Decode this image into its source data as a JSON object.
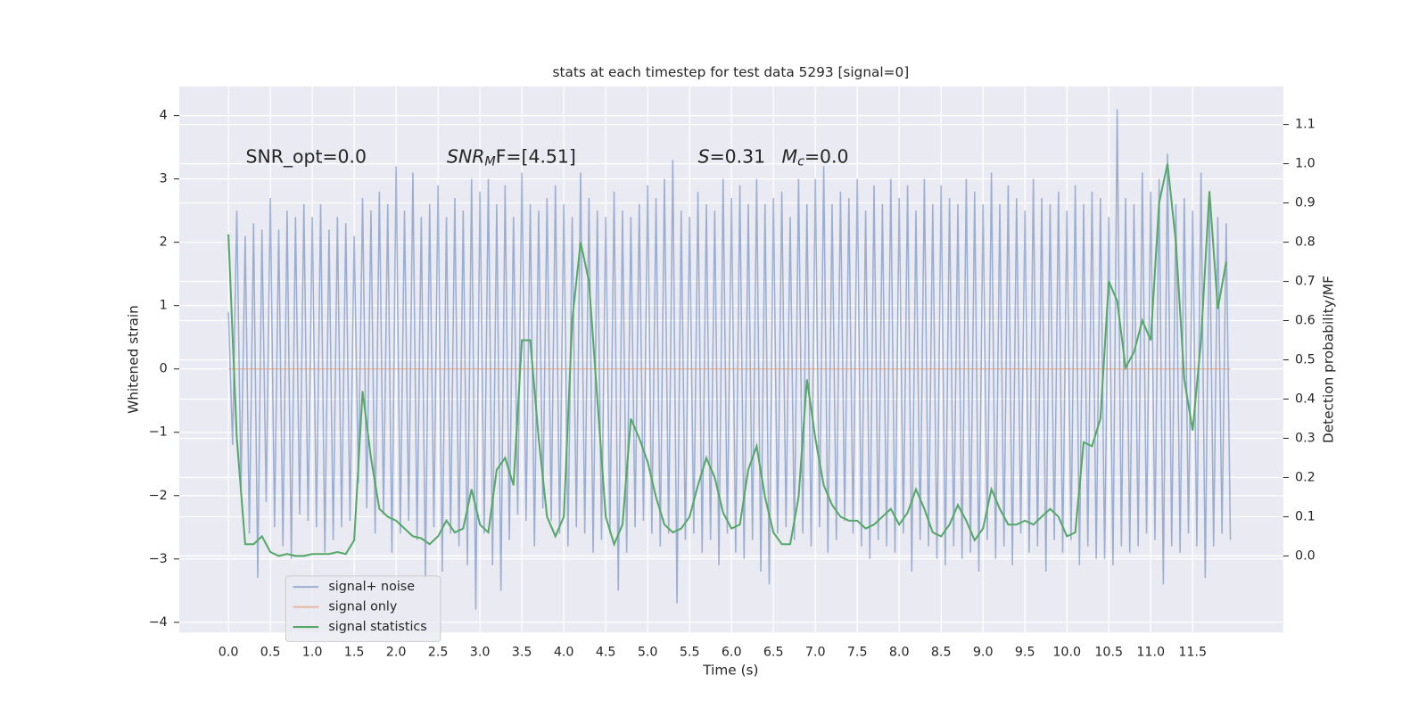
{
  "chart_data": {
    "type": "line",
    "title": "stats at each timestep for test data 5293 [signal=0]",
    "x_label": "Time (s)",
    "y_label": "Whitened strain",
    "y2_label": "Detection probability/MF",
    "background": "#eaeaf2",
    "grid": true,
    "legend": "lower left",
    "xlim": [
      -0.586,
      12.58
    ],
    "ylim": [
      -4.16,
      4.46
    ],
    "y2lim": [
      -0.195,
      1.197
    ],
    "xticks": [
      {
        "value": 0,
        "label": "0.0"
      },
      {
        "value": 0.5,
        "label": "0.5"
      },
      {
        "value": 1,
        "label": "1.0"
      },
      {
        "value": 1.5,
        "label": "1.5"
      },
      {
        "value": 2,
        "label": "2.0"
      },
      {
        "value": 2.5,
        "label": "2.5"
      },
      {
        "value": 3,
        "label": "3.0"
      },
      {
        "value": 3.5,
        "label": "3.5"
      },
      {
        "value": 4,
        "label": "4.0"
      },
      {
        "value": 4.5,
        "label": "4.5"
      },
      {
        "value": 5,
        "label": "5.0"
      },
      {
        "value": 5.5,
        "label": "5.5"
      },
      {
        "value": 6,
        "label": "6.0"
      },
      {
        "value": 6.5,
        "label": "6.5"
      },
      {
        "value": 7,
        "label": "7.0"
      },
      {
        "value": 7.5,
        "label": "7.5"
      },
      {
        "value": 8,
        "label": "8.0"
      },
      {
        "value": 8.5,
        "label": "8.5"
      },
      {
        "value": 9,
        "label": "9.0"
      },
      {
        "value": 9.5,
        "label": "9.5"
      },
      {
        "value": 10,
        "label": "10.0"
      },
      {
        "value": 10.5,
        "label": "10.5"
      },
      {
        "value": 11,
        "label": "11.0"
      },
      {
        "value": 11.5,
        "label": "11.5"
      }
    ],
    "yticks": [
      {
        "value": -4,
        "label": "−4"
      },
      {
        "value": -3,
        "label": "−3"
      },
      {
        "value": -2,
        "label": "−2"
      },
      {
        "value": -1,
        "label": "−1"
      },
      0,
      1,
      2,
      3,
      4
    ],
    "y2ticks": [
      {
        "value": 0,
        "label": "0.0"
      },
      {
        "value": 0.1,
        "label": "0.1"
      },
      {
        "value": 0.2,
        "label": "0.2"
      },
      {
        "value": 0.3,
        "label": "0.3"
      },
      {
        "value": 0.4,
        "label": "0.4"
      },
      {
        "value": 0.5,
        "label": "0.5"
      },
      {
        "value": 0.6,
        "label": "0.6"
      },
      {
        "value": 0.7,
        "label": "0.7"
      },
      {
        "value": 0.8,
        "label": "0.8"
      },
      {
        "value": 0.9,
        "label": "0.9"
      },
      {
        "value": 1,
        "label": "1.0"
      },
      {
        "value": 1.1,
        "label": "1.1"
      }
    ],
    "annotations": [
      [
        {
          "text": "SNR_opt=0.0"
        }
      ],
      [
        {
          "text": "SNR",
          "style": "italic"
        },
        {
          "text": "M",
          "style": "italic-sub"
        },
        {
          "text": "F=[4.51]"
        }
      ],
      [
        {
          "text": "S",
          "style": "italic"
        },
        {
          "text": "=0.31"
        }
      ],
      [
        {
          "text": "M",
          "style": "italic"
        },
        {
          "text": "c",
          "style": "italic-sub"
        },
        {
          "text": "=0.0"
        }
      ]
    ],
    "series": [
      {
        "name": "signal+ noise",
        "color": "#4c72b0",
        "opacity": 0.5,
        "axis": "y",
        "x": [
          0,
          0.05,
          0.1,
          0.15,
          0.2,
          0.25,
          0.3,
          0.35,
          0.4,
          0.45,
          0.5,
          0.55,
          0.6,
          0.65,
          0.7,
          0.75,
          0.8,
          0.85,
          0.9,
          0.95,
          1,
          1.05,
          1.1,
          1.15,
          1.2,
          1.25,
          1.3,
          1.35,
          1.4,
          1.45,
          1.5,
          1.55,
          1.6,
          1.65,
          1.7,
          1.75,
          1.8,
          1.85,
          1.9,
          1.95,
          2,
          2.05,
          2.1,
          2.15,
          2.2,
          2.25,
          2.3,
          2.35,
          2.4,
          2.45,
          2.5,
          2.55,
          2.6,
          2.65,
          2.7,
          2.75,
          2.8,
          2.85,
          2.9,
          2.95,
          3,
          3.05,
          3.1,
          3.15,
          3.2,
          3.25,
          3.3,
          3.35,
          3.4,
          3.45,
          3.5,
          3.55,
          3.6,
          3.65,
          3.7,
          3.75,
          3.8,
          3.85,
          3.9,
          3.95,
          4,
          4.05,
          4.1,
          4.15,
          4.2,
          4.25,
          4.3,
          4.35,
          4.4,
          4.45,
          4.5,
          4.55,
          4.6,
          4.65,
          4.7,
          4.75,
          4.8,
          4.85,
          4.9,
          4.95,
          5,
          5.05,
          5.1,
          5.15,
          5.2,
          5.25,
          5.3,
          5.35,
          5.4,
          5.45,
          5.5,
          5.55,
          5.6,
          5.65,
          5.7,
          5.75,
          5.8,
          5.85,
          5.9,
          5.95,
          6,
          6.05,
          6.1,
          6.15,
          6.2,
          6.25,
          6.3,
          6.35,
          6.4,
          6.45,
          6.5,
          6.55,
          6.6,
          6.65,
          6.7,
          6.75,
          6.8,
          6.85,
          6.9,
          6.95,
          7,
          7.05,
          7.1,
          7.15,
          7.2,
          7.25,
          7.3,
          7.35,
          7.4,
          7.45,
          7.5,
          7.55,
          7.6,
          7.65,
          7.7,
          7.75,
          7.8,
          7.85,
          7.9,
          7.95,
          8,
          8.05,
          8.1,
          8.15,
          8.2,
          8.25,
          8.3,
          8.35,
          8.4,
          8.45,
          8.5,
          8.55,
          8.6,
          8.65,
          8.7,
          8.75,
          8.8,
          8.85,
          8.9,
          8.95,
          9,
          9.05,
          9.1,
          9.15,
          9.2,
          9.25,
          9.3,
          9.35,
          9.4,
          9.45,
          9.5,
          9.55,
          9.6,
          9.65,
          9.7,
          9.75,
          9.8,
          9.85,
          9.9,
          9.95,
          10,
          10.05,
          10.1,
          10.15,
          10.2,
          10.25,
          10.3,
          10.35,
          10.4,
          10.45,
          10.5,
          10.55,
          10.6,
          10.65,
          10.7,
          10.75,
          10.8,
          10.85,
          10.9,
          10.95,
          11,
          11.05,
          11.1,
          11.15,
          11.2,
          11.25,
          11.3,
          11.35,
          11.4,
          11.45,
          11.5,
          11.55,
          11.6,
          11.65,
          11.7,
          11.75,
          11.8,
          11.85,
          11.9,
          11.95
        ],
        "values": [
          0.9,
          -1.2,
          2.5,
          -1.9,
          2.1,
          -2.6,
          2.3,
          -3.3,
          2.2,
          -2.1,
          2.7,
          -2.5,
          2.2,
          -2.8,
          2.5,
          -3.0,
          2.4,
          -2.3,
          2.6,
          -2.4,
          2.4,
          -2.5,
          2.6,
          -2.9,
          2.2,
          -2.7,
          2.4,
          -2.5,
          2.3,
          -2.4,
          2.1,
          -1.8,
          2.7,
          -2.2,
          2.5,
          -2.6,
          2.8,
          -2.3,
          2.6,
          -2.9,
          3.2,
          -2.6,
          2.5,
          -2.4,
          3.1,
          -2.7,
          2.4,
          -3.3,
          2.6,
          -2.5,
          2.9,
          -3.2,
          2.4,
          -2.6,
          2.7,
          -2.8,
          2.5,
          -3.1,
          3.0,
          -3.8,
          2.8,
          -2.6,
          3.0,
          -3.1,
          2.6,
          -3.5,
          2.9,
          -2.7,
          2.4,
          -2.3,
          3.1,
          -2.4,
          2.6,
          -2.8,
          2.5,
          -2.2,
          2.7,
          -2.4,
          2.9,
          -2.6,
          2.6,
          -2.8,
          2.4,
          -2.5,
          3.1,
          -2.6,
          2.7,
          -2.9,
          2.5,
          -2.7,
          2.4,
          -2.6,
          2.8,
          -3.5,
          2.5,
          -2.9,
          2.4,
          -2.5,
          2.6,
          -2.4,
          2.9,
          -2.6,
          2.7,
          -2.8,
          3.0,
          -2.6,
          3.3,
          -3.7,
          2.5,
          -2.7,
          2.4,
          -2.6,
          2.8,
          -2.9,
          2.6,
          -2.7,
          2.5,
          -3.1,
          3.0,
          -2.6,
          2.7,
          -2.9,
          2.9,
          -3.0,
          2.6,
          -2.7,
          3.0,
          -3.2,
          2.6,
          -3.4,
          2.7,
          -2.6,
          2.8,
          -2.5,
          2.4,
          -2.7,
          3.0,
          -2.6,
          2.6,
          -2.8,
          3.0,
          -2.5,
          3.2,
          -2.9,
          2.6,
          -2.7,
          2.8,
          -2.4,
          2.7,
          -2.6,
          3.0,
          -2.8,
          2.5,
          -3.0,
          2.9,
          -2.7,
          2.6,
          -2.8,
          3.0,
          -2.9,
          2.7,
          -2.6,
          2.9,
          -3.2,
          2.5,
          -2.7,
          3.0,
          -2.8,
          2.6,
          -3.0,
          2.9,
          -3.1,
          2.7,
          -2.8,
          2.6,
          -3.0,
          3.0,
          -2.9,
          2.8,
          -3.2,
          2.6,
          -2.7,
          3.1,
          -3.0,
          2.6,
          -2.8,
          2.9,
          -3.1,
          2.7,
          -2.6,
          2.5,
          -2.9,
          3.0,
          -2.8,
          2.7,
          -3.2,
          2.6,
          -2.7,
          2.8,
          -2.9,
          2.5,
          -2.7,
          2.9,
          -3.1,
          2.6,
          -2.8,
          2.8,
          -3.0,
          2.7,
          -3.0,
          2.4,
          -3.1,
          4.1,
          -2.8,
          2.7,
          -2.9,
          2.6,
          -2.8,
          3.1,
          -2.6,
          2.8,
          -2.7,
          3.0,
          -3.4,
          3.4,
          -2.8,
          2.6,
          -2.9,
          2.7,
          -2.6,
          2.5,
          -2.8,
          3.1,
          -3.3,
          2.6,
          -2.8,
          2.4,
          -2.6,
          2.3,
          -2.7
        ]
      },
      {
        "name": "signal only",
        "color": "#dd8452",
        "opacity": 0.5,
        "axis": "y",
        "x": [
          0,
          11.95
        ],
        "values": [
          0,
          0
        ]
      },
      {
        "name": "signal statistics",
        "color": "#55a868",
        "opacity": 1,
        "axis": "y2",
        "x": [
          0,
          0.1,
          0.2,
          0.3,
          0.4,
          0.5,
          0.6,
          0.7,
          0.8,
          0.9,
          1,
          1.1,
          1.2,
          1.3,
          1.4,
          1.5,
          1.6,
          1.7,
          1.8,
          1.9,
          2,
          2.1,
          2.2,
          2.3,
          2.4,
          2.5,
          2.6,
          2.7,
          2.8,
          2.9,
          3,
          3.1,
          3.2,
          3.3,
          3.4,
          3.5,
          3.6,
          3.7,
          3.8,
          3.9,
          4,
          4.1,
          4.2,
          4.3,
          4.4,
          4.5,
          4.6,
          4.7,
          4.8,
          4.9,
          5,
          5.1,
          5.2,
          5.3,
          5.4,
          5.5,
          5.6,
          5.7,
          5.8,
          5.9,
          6,
          6.1,
          6.2,
          6.3,
          6.4,
          6.5,
          6.6,
          6.7,
          6.8,
          6.9,
          7,
          7.1,
          7.2,
          7.3,
          7.4,
          7.5,
          7.6,
          7.7,
          7.8,
          7.9,
          8,
          8.1,
          8.2,
          8.3,
          8.4,
          8.5,
          8.6,
          8.7,
          8.8,
          8.9,
          9,
          9.1,
          9.2,
          9.3,
          9.4,
          9.5,
          9.6,
          9.7,
          9.8,
          9.9,
          10,
          10.1,
          10.2,
          10.3,
          10.4,
          10.5,
          10.6,
          10.7,
          10.8,
          10.9,
          11,
          11.1,
          11.2,
          11.3,
          11.4,
          11.5,
          11.6,
          11.7,
          11.8,
          11.9
        ],
        "values": [
          0.82,
          0.3,
          0.03,
          0.03,
          0.05,
          0.01,
          0.0,
          0.005,
          0.0,
          0.0,
          0.005,
          0.005,
          0.005,
          0.01,
          0.005,
          0.04,
          0.42,
          0.25,
          0.12,
          0.1,
          0.09,
          0.07,
          0.05,
          0.045,
          0.03,
          0.05,
          0.09,
          0.06,
          0.07,
          0.17,
          0.08,
          0.06,
          0.22,
          0.25,
          0.18,
          0.55,
          0.55,
          0.3,
          0.1,
          0.05,
          0.1,
          0.6,
          0.8,
          0.7,
          0.4,
          0.1,
          0.03,
          0.08,
          0.35,
          0.3,
          0.24,
          0.15,
          0.08,
          0.06,
          0.07,
          0.1,
          0.18,
          0.25,
          0.2,
          0.11,
          0.07,
          0.08,
          0.22,
          0.28,
          0.15,
          0.06,
          0.03,
          0.03,
          0.15,
          0.45,
          0.3,
          0.18,
          0.13,
          0.1,
          0.09,
          0.09,
          0.07,
          0.08,
          0.1,
          0.12,
          0.08,
          0.11,
          0.17,
          0.12,
          0.06,
          0.05,
          0.08,
          0.13,
          0.09,
          0.04,
          0.07,
          0.17,
          0.12,
          0.08,
          0.08,
          0.09,
          0.08,
          0.1,
          0.12,
          0.1,
          0.05,
          0.06,
          0.29,
          0.28,
          0.35,
          0.7,
          0.65,
          0.48,
          0.52,
          0.6,
          0.55,
          0.9,
          1.0,
          0.8,
          0.45,
          0.32,
          0.55,
          0.93,
          0.63,
          0.75
        ]
      }
    ]
  }
}
